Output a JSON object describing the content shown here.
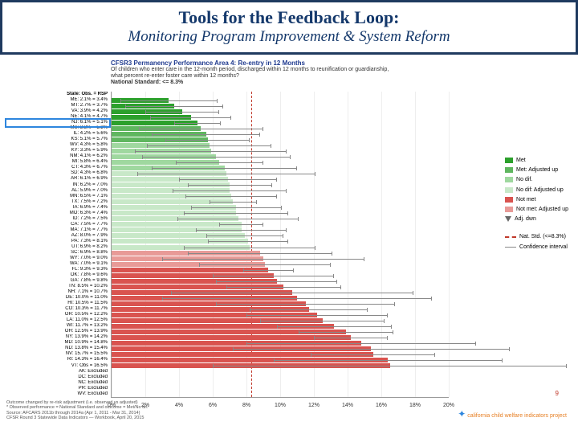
{
  "header": {
    "title": "Tools for the Feedback Loop:",
    "subtitle": "Monitoring Program Improvement & System Reform"
  },
  "chart": {
    "title": "CFSR3 Permanency Performance Area 4: Re-entry in 12 Months",
    "subtitle1": "Of children who enter care in the 12-month period, discharged within 12 months to reunification or guardianship,",
    "subtitle2": "what percent re-enter foster care within 12 months?",
    "subtitle3": "National Standard: <= 8.3%",
    "type": "bar-horizontal",
    "xlim": [
      0,
      20
    ],
    "xtick_step": 2,
    "xticks": [
      "0%",
      "2%",
      "4%",
      "6%",
      "8%",
      "10%",
      "12%",
      "14%",
      "16%",
      "18%",
      "20%"
    ],
    "nat_std": 8.3,
    "nat_std_color": "#c0392b",
    "grid_color": "#eeeeee",
    "plot_bg": "#ffffff",
    "label_fontsize": 6,
    "highlight_index": 5,
    "highlight_color": "#2e86de",
    "colors": {
      "met": "#2ca02c",
      "met_adj": "#5fb65f",
      "nodif": "#9fd89f",
      "nodif_adj": "#c8e8c8",
      "notmet": "#d9534f",
      "notmet_adj": "#e89a97"
    },
    "rows": [
      {
        "label": "State: Obs. = RSP",
        "val": 0,
        "cat": "header",
        "ci_lo": 0,
        "ci_hi": 0
      },
      {
        "label": "ME: 2.1% = 3.4%",
        "val": 3.4,
        "cat": "met",
        "ci_lo": 0.5,
        "ci_hi": 6.3
      },
      {
        "label": "MT: 2.7% = 3.7%",
        "val": 3.7,
        "cat": "met",
        "ci_lo": 0.8,
        "ci_hi": 6.6
      },
      {
        "label": "VA: 3.9% = 4.2%",
        "val": 4.2,
        "cat": "met",
        "ci_lo": 2.0,
        "ci_hi": 6.4
      },
      {
        "label": "NE: 4.1% = 4.7%",
        "val": 4.7,
        "cat": "met",
        "ci_lo": 2.3,
        "ci_hi": 7.1
      },
      {
        "label": "NJ: 6.1% = 5.1%",
        "val": 5.1,
        "cat": "met",
        "ci_lo": 3.7,
        "ci_hi": 6.5
      },
      {
        "label": "MS: 3.3% = 5.3%",
        "val": 5.3,
        "cat": "met_adj",
        "ci_lo": 1.6,
        "ci_hi": 9.0
      },
      {
        "label": "IL: 4.2% = 5.6%",
        "val": 5.6,
        "cat": "met_adj",
        "ci_lo": 2.4,
        "ci_hi": 8.8
      },
      {
        "label": "KS: 5.1% = 5.7%",
        "val": 5.7,
        "cat": "met_adj",
        "ci_lo": 3.2,
        "ci_hi": 8.2
      },
      {
        "label": "WV: 4.3% = 5.8%",
        "val": 5.8,
        "cat": "nodif",
        "ci_lo": 2.1,
        "ci_hi": 9.5
      },
      {
        "label": "KY: 3.3% = 5.9%",
        "val": 5.9,
        "cat": "nodif",
        "ci_lo": 1.4,
        "ci_hi": 10.4
      },
      {
        "label": "NM: 4.1% = 6.2%",
        "val": 6.2,
        "cat": "nodif",
        "ci_lo": 1.8,
        "ci_hi": 10.6
      },
      {
        "label": "MI: 5.8% = 6.4%",
        "val": 6.4,
        "cat": "nodif",
        "ci_lo": 3.8,
        "ci_hi": 9.0
      },
      {
        "label": "CT: 4.3% = 6.7%",
        "val": 6.7,
        "cat": "nodif",
        "ci_lo": 2.4,
        "ci_hi": 11.0
      },
      {
        "label": "SD: 4.3% = 6.8%",
        "val": 6.8,
        "cat": "nodif_adj",
        "ci_lo": 1.5,
        "ci_hi": 12.1
      },
      {
        "label": "AR: 6.1% = 6.9%",
        "val": 6.9,
        "cat": "nodif_adj",
        "ci_lo": 4.0,
        "ci_hi": 9.8
      },
      {
        "label": "IN: 6.2% = 7.0%",
        "val": 7.0,
        "cat": "nodif_adj",
        "ci_lo": 4.5,
        "ci_hi": 9.5
      },
      {
        "label": "AL: 5.9% = 7.0%",
        "val": 7.0,
        "cat": "nodif_adj",
        "ci_lo": 3.6,
        "ci_hi": 10.4
      },
      {
        "label": "MN: 6.5% = 7.1%",
        "val": 7.1,
        "cat": "nodif_adj",
        "ci_lo": 4.4,
        "ci_hi": 9.8
      },
      {
        "label": "TX: 7.5% = 7.2%",
        "val": 7.2,
        "cat": "nodif_adj",
        "ci_lo": 5.8,
        "ci_hi": 8.6
      },
      {
        "label": "IA: 6.9% = 7.4%",
        "val": 7.4,
        "cat": "nodif_adj",
        "ci_lo": 4.7,
        "ci_hi": 10.1
      },
      {
        "label": "MO: 6.3% = 7.4%",
        "val": 7.4,
        "cat": "nodif_adj",
        "ci_lo": 4.3,
        "ci_hi": 10.5
      },
      {
        "label": "ID: 7.2% = 7.5%",
        "val": 7.5,
        "cat": "nodif_adj",
        "ci_lo": 3.9,
        "ci_hi": 11.1
      },
      {
        "label": "CA: 7.5% = 7.7%",
        "val": 7.7,
        "cat": "nodif_adj",
        "ci_lo": 6.4,
        "ci_hi": 9.0
      },
      {
        "label": "MA: 7.1% = 7.7%",
        "val": 7.7,
        "cat": "nodif_adj",
        "ci_lo": 5.0,
        "ci_hi": 10.4
      },
      {
        "label": "AZ: 8.0% = 7.9%",
        "val": 7.9,
        "cat": "nodif_adj",
        "ci_lo": 5.6,
        "ci_hi": 10.2
      },
      {
        "label": "PA: 7.3% = 8.1%",
        "val": 8.1,
        "cat": "nodif_adj",
        "ci_lo": 5.7,
        "ci_hi": 10.5
      },
      {
        "label": "UT: 6.9% = 8.2%",
        "val": 8.2,
        "cat": "nodif_adj",
        "ci_lo": 4.3,
        "ci_hi": 12.1
      },
      {
        "label": "SC: 6.9% = 8.8%",
        "val": 8.8,
        "cat": "notmet_adj",
        "ci_lo": 4.5,
        "ci_hi": 13.1
      },
      {
        "label": "WY: 7.0% = 9.0%",
        "val": 9.0,
        "cat": "notmet_adj",
        "ci_lo": 3.0,
        "ci_hi": 15.0
      },
      {
        "label": "WA: 7.0% = 9.1%",
        "val": 9.1,
        "cat": "notmet_adj",
        "ci_lo": 5.2,
        "ci_hi": 13.0
      },
      {
        "label": "FL: 9.3% = 9.3%",
        "val": 9.3,
        "cat": "notmet",
        "ci_lo": 7.8,
        "ci_hi": 10.8
      },
      {
        "label": "OK: 7.8% = 9.6%",
        "val": 9.6,
        "cat": "notmet",
        "ci_lo": 6.0,
        "ci_hi": 13.2
      },
      {
        "label": "GA: 7.8% = 9.8%",
        "val": 9.8,
        "cat": "notmet",
        "ci_lo": 6.2,
        "ci_hi": 13.4
      },
      {
        "label": "TN: 8.5% = 10.2%",
        "val": 10.2,
        "cat": "notmet",
        "ci_lo": 6.8,
        "ci_hi": 13.6
      },
      {
        "label": "NH: 7.1% = 10.7%",
        "val": 10.7,
        "cat": "notmet",
        "ci_lo": 3.5,
        "ci_hi": 17.9
      },
      {
        "label": "DE: 10.0% = 11.0%",
        "val": 11.0,
        "cat": "notmet",
        "ci_lo": 3.0,
        "ci_hi": 19.0
      },
      {
        "label": "HI: 10.5% = 11.5%",
        "val": 11.5,
        "cat": "notmet",
        "ci_lo": 6.2,
        "ci_hi": 16.8
      },
      {
        "label": "CO: 10.3% = 11.7%",
        "val": 11.7,
        "cat": "notmet",
        "ci_lo": 8.2,
        "ci_hi": 15.2
      },
      {
        "label": "OR: 10.5% = 12.2%",
        "val": 12.2,
        "cat": "notmet",
        "ci_lo": 8.0,
        "ci_hi": 16.4
      },
      {
        "label": "LA: 11.0% = 12.5%",
        "val": 12.5,
        "cat": "notmet",
        "ci_lo": 8.8,
        "ci_hi": 16.2
      },
      {
        "label": "WI: 11.7% = 13.2%",
        "val": 13.2,
        "cat": "notmet",
        "ci_lo": 9.8,
        "ci_hi": 16.6
      },
      {
        "label": "OH: 12.5% = 13.9%",
        "val": 13.9,
        "cat": "notmet",
        "ci_lo": 11.1,
        "ci_hi": 16.7
      },
      {
        "label": "NY: 13.9% = 14.2%",
        "val": 14.2,
        "cat": "notmet",
        "ci_lo": 12.0,
        "ci_hi": 16.4
      },
      {
        "label": "MD: 10.9% = 14.8%",
        "val": 14.8,
        "cat": "notmet",
        "ci_lo": 8.0,
        "ci_hi": 21.6
      },
      {
        "label": "ND: 13.8% = 15.4%",
        "val": 15.4,
        "cat": "notmet",
        "ci_lo": 7.2,
        "ci_hi": 23.6
      },
      {
        "label": "NV: 15.7% = 15.5%",
        "val": 15.5,
        "cat": "notmet",
        "ci_lo": 11.8,
        "ci_hi": 19.2
      },
      {
        "label": "RI: 14.3% = 16.4%",
        "val": 16.4,
        "cat": "notmet",
        "ci_lo": 9.6,
        "ci_hi": 23.2
      },
      {
        "label": "VT: Obs = 16.5%",
        "val": 16.5,
        "cat": "notmet",
        "ci_lo": 6.0,
        "ci_hi": 27.0
      }
    ],
    "excluded": [
      "AK: Excluded",
      "DC: Excluded",
      "NC: Excluded",
      "PR: Excluded",
      "WV: Excluded"
    ],
    "legend": [
      {
        "label": "Met",
        "color": "#2ca02c"
      },
      {
        "label": "Met: Adjusted up",
        "color": "#5fb65f"
      },
      {
        "label": "No dif.",
        "color": "#9fd89f"
      },
      {
        "label": "No dif: Adjusted up",
        "color": "#c8e8c8"
      },
      {
        "label": "Not met",
        "color": "#d9534f"
      },
      {
        "label": "Not met: Adjusted up",
        "color": "#e89a97"
      },
      {
        "label": "Adj. dwn",
        "color": "none",
        "marker": "triangle"
      }
    ],
    "legend2": [
      {
        "label": "Nat. Std. (<=8.3%)",
        "style": "dash",
        "color": "#c0392b"
      },
      {
        "label": "Confidence interval",
        "style": "ci",
        "color": "#888888"
      }
    ]
  },
  "footer": {
    "l1": "Outcome changed by re-risk adjustment (i.e. observed vs adjusted)",
    "l2": "* Observed performance = National Standard and outcome = Met/No dif.",
    "l3": "Source: AFCARS 2011b through 2014a (Apr 1, 2011 - Mar 31, 2014)",
    "l4": "CFSR Round 3 Statewide Data Indicators — Workbook, April 20, 2015"
  },
  "page_number": "9",
  "logo_text": "california child welfare indicators project"
}
